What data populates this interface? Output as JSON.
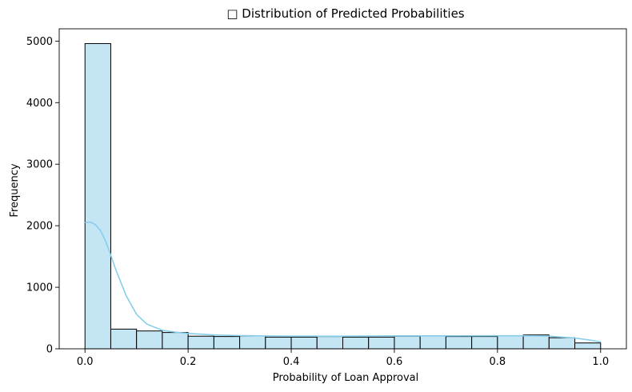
{
  "chart_data": {
    "type": "bar",
    "title": "□ Distribution of Predicted Probabilities",
    "xlabel": "Probability of Loan Approval",
    "ylabel": "Frequency",
    "xlim": [
      -0.05,
      1.05
    ],
    "ylim": [
      0,
      5200
    ],
    "xticks": [
      0.0,
      0.2,
      0.4,
      0.6,
      0.8,
      1.0
    ],
    "xtick_labels": [
      "0.0",
      "0.2",
      "0.4",
      "0.6",
      "0.8",
      "1.0"
    ],
    "yticks": [
      0,
      1000,
      2000,
      3000,
      4000,
      5000
    ],
    "ytick_labels": [
      "0",
      "1000",
      "2000",
      "3000",
      "4000",
      "5000"
    ],
    "bin_edges": [
      0.0,
      0.05,
      0.1,
      0.15,
      0.2,
      0.25,
      0.3,
      0.35,
      0.4,
      0.45,
      0.5,
      0.55,
      0.6,
      0.65,
      0.7,
      0.75,
      0.8,
      0.85,
      0.9,
      0.95,
      1.0
    ],
    "values": [
      4960,
      320,
      290,
      265,
      205,
      200,
      210,
      190,
      190,
      200,
      190,
      190,
      205,
      210,
      200,
      200,
      210,
      225,
      180,
      95
    ],
    "kde": {
      "x": [
        0.0,
        0.01,
        0.02,
        0.03,
        0.04,
        0.05,
        0.06,
        0.08,
        0.1,
        0.12,
        0.15,
        0.18,
        0.2,
        0.25,
        0.3,
        0.4,
        0.5,
        0.6,
        0.7,
        0.8,
        0.85,
        0.9,
        0.95,
        0.98,
        1.0
      ],
      "y": [
        2050,
        2060,
        2020,
        1920,
        1750,
        1520,
        1280,
        860,
        560,
        400,
        300,
        265,
        250,
        225,
        215,
        205,
        205,
        210,
        210,
        212,
        212,
        205,
        175,
        140,
        110
      ]
    },
    "bar_color": "#c3e5f4",
    "bar_edge_color": "#000000",
    "kde_color": "#87ceeb",
    "grid": false,
    "legend": "none"
  }
}
